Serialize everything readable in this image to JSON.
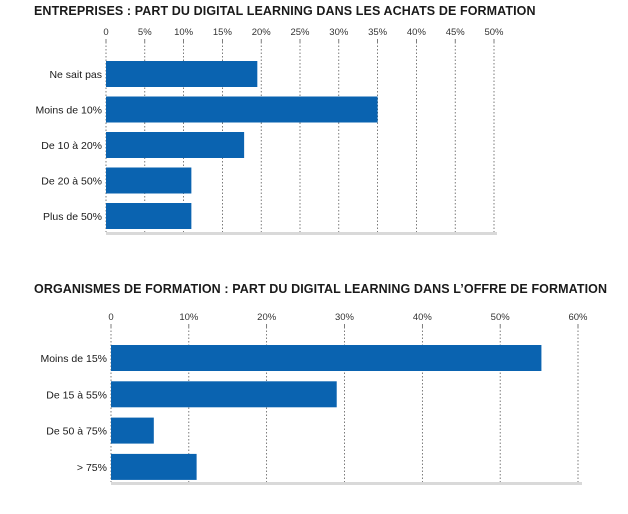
{
  "chart_data": [
    {
      "type": "bar",
      "title": "ENTREPRISES  : PART DU DIGITAL LEARNING DANS LES ACHATS DE FORMATION",
      "categories": [
        "Ne sait pas",
        "Moins de 10%",
        "De 10 à 20%",
        "De 20 à 50%",
        "Plus de 50%"
      ],
      "values": [
        19.5,
        35,
        17.8,
        11,
        11
      ],
      "xlim": [
        0,
        50
      ],
      "xticks": [
        "0",
        "5%",
        "10%",
        "15%",
        "20%",
        "25%",
        "30%",
        "35%",
        "40%",
        "45%",
        "50%"
      ],
      "grid": true,
      "bar_color": "#0a63b0"
    },
    {
      "type": "bar",
      "title": "ORGANISMES DE FORMATION : PART DU DIGITAL LEARNING DANS L’OFFRE DE FORMATION",
      "categories": [
        "Moins de 15%",
        "De 15 à 55%",
        "De 50 à 75%",
        "> 75%"
      ],
      "values": [
        55.3,
        29,
        5.5,
        11
      ],
      "xlim": [
        0,
        60
      ],
      "xticks": [
        "0",
        "10%",
        "20%",
        "30%",
        "40%",
        "50%",
        "60%"
      ],
      "grid": true,
      "bar_color": "#0a63b0"
    }
  ]
}
